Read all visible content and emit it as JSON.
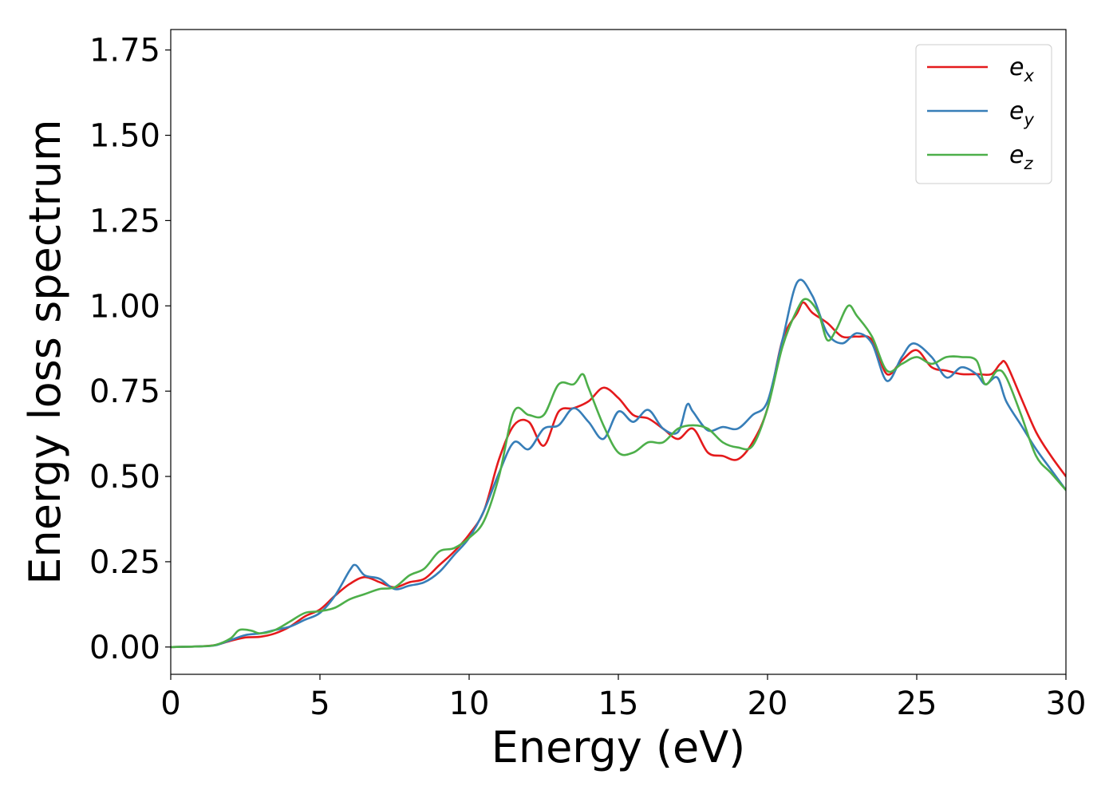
{
  "chart_data": {
    "type": "line",
    "title": "",
    "xlabel": "Energy (eV)",
    "ylabel": "Energy loss spectrum",
    "xlim": [
      0,
      30
    ],
    "ylim": [
      -0.08,
      1.81
    ],
    "xticks": [
      0,
      5,
      10,
      15,
      20,
      25,
      30
    ],
    "xtick_labels": [
      "0",
      "5",
      "10",
      "15",
      "20",
      "25",
      "30"
    ],
    "yticks": [
      0,
      0.25,
      0.5,
      0.75,
      1.0,
      1.25,
      1.5,
      1.75
    ],
    "ytick_labels": [
      "0.00",
      "0.25",
      "0.50",
      "0.75",
      "1.00",
      "1.25",
      "1.50",
      "1.75"
    ],
    "grid": false,
    "legend_position": "top-right",
    "series": [
      {
        "name": "e_x",
        "label_base": "e",
        "label_sub": "x",
        "color": "#e41a1c",
        "x": [
          0,
          1,
          1.5,
          2,
          2.5,
          3,
          3.5,
          4,
          4.5,
          5,
          5.5,
          6,
          6.5,
          7,
          7.5,
          8,
          8.5,
          9,
          9.5,
          10,
          10.5,
          11,
          11.5,
          12,
          12.5,
          13,
          13.5,
          14,
          14.5,
          15,
          15.5,
          16,
          16.5,
          17,
          17.5,
          18,
          18.5,
          19,
          19.5,
          20,
          20.5,
          21,
          21.2,
          21.5,
          22,
          22.5,
          23,
          23.5,
          24,
          24.5,
          25,
          25.5,
          26,
          26.5,
          27,
          27.5,
          27.8,
          28,
          28.5,
          29,
          29.5,
          30
        ],
        "y": [
          0,
          0.002,
          0.006,
          0.018,
          0.028,
          0.03,
          0.04,
          0.06,
          0.09,
          0.11,
          0.15,
          0.185,
          0.205,
          0.19,
          0.175,
          0.19,
          0.2,
          0.24,
          0.28,
          0.33,
          0.4,
          0.55,
          0.65,
          0.66,
          0.59,
          0.69,
          0.7,
          0.72,
          0.76,
          0.73,
          0.68,
          0.67,
          0.64,
          0.61,
          0.64,
          0.57,
          0.56,
          0.55,
          0.6,
          0.7,
          0.9,
          0.98,
          1.01,
          0.98,
          0.95,
          0.91,
          0.91,
          0.9,
          0.8,
          0.84,
          0.87,
          0.82,
          0.81,
          0.8,
          0.8,
          0.8,
          0.83,
          0.83,
          0.73,
          0.63,
          0.56,
          0.5
        ]
      },
      {
        "name": "e_y",
        "label_base": "e",
        "label_sub": "y",
        "color": "#377eb8",
        "x": [
          0,
          1,
          1.5,
          2,
          2.5,
          3,
          3.5,
          4,
          4.5,
          5,
          5.5,
          6,
          6.2,
          6.5,
          7,
          7.5,
          8,
          8.5,
          9,
          9.5,
          10,
          10.5,
          11,
          11.5,
          12,
          12.5,
          13,
          13.5,
          14,
          14.5,
          15,
          15.5,
          16,
          16.5,
          17,
          17.3,
          17.5,
          18,
          18.5,
          19,
          19.5,
          20,
          20.5,
          21,
          21.5,
          22,
          22.5,
          23,
          23.5,
          24,
          24.5,
          24.9,
          25.5,
          26,
          26.5,
          27,
          27.3,
          27.7,
          28,
          28.5,
          29,
          29.5,
          30
        ],
        "y": [
          0,
          0.002,
          0.005,
          0.02,
          0.035,
          0.04,
          0.05,
          0.06,
          0.08,
          0.1,
          0.15,
          0.225,
          0.24,
          0.21,
          0.2,
          0.17,
          0.18,
          0.19,
          0.22,
          0.27,
          0.32,
          0.4,
          0.51,
          0.6,
          0.58,
          0.64,
          0.65,
          0.7,
          0.66,
          0.61,
          0.69,
          0.66,
          0.695,
          0.64,
          0.63,
          0.71,
          0.69,
          0.635,
          0.645,
          0.64,
          0.68,
          0.72,
          0.9,
          1.07,
          1.03,
          0.92,
          0.89,
          0.92,
          0.89,
          0.78,
          0.85,
          0.89,
          0.85,
          0.79,
          0.82,
          0.8,
          0.77,
          0.79,
          0.72,
          0.65,
          0.58,
          0.52,
          0.46
        ]
      },
      {
        "name": "e_z",
        "label_base": "e",
        "label_sub": "z",
        "color": "#4daf4a",
        "x": [
          0,
          1,
          1.5,
          2,
          2.3,
          2.7,
          3,
          3.5,
          4,
          4.5,
          5,
          5.5,
          6,
          6.5,
          7,
          7.5,
          8,
          8.5,
          9,
          9.5,
          10,
          10.5,
          11,
          11.5,
          12,
          12.5,
          13,
          13.5,
          13.8,
          14,
          14.5,
          15,
          15.5,
          16,
          16.5,
          17,
          17.5,
          18,
          18.5,
          19,
          19.5,
          20,
          20.5,
          21,
          21.3,
          21.7,
          22,
          22.3,
          22.7,
          23,
          23.5,
          24,
          24.5,
          25,
          25.5,
          26,
          26.5,
          27,
          27.3,
          27.7,
          28,
          28.5,
          29,
          29.5,
          30
        ],
        "y": [
          0,
          0.002,
          0.006,
          0.025,
          0.05,
          0.048,
          0.04,
          0.05,
          0.075,
          0.1,
          0.105,
          0.115,
          0.14,
          0.155,
          0.17,
          0.175,
          0.21,
          0.23,
          0.28,
          0.29,
          0.32,
          0.37,
          0.5,
          0.69,
          0.68,
          0.68,
          0.77,
          0.77,
          0.8,
          0.76,
          0.65,
          0.57,
          0.57,
          0.6,
          0.6,
          0.64,
          0.65,
          0.64,
          0.6,
          0.585,
          0.59,
          0.7,
          0.88,
          0.99,
          1.02,
          0.98,
          0.9,
          0.93,
          1.0,
          0.97,
          0.91,
          0.81,
          0.83,
          0.85,
          0.83,
          0.85,
          0.85,
          0.84,
          0.77,
          0.81,
          0.79,
          0.68,
          0.56,
          0.51,
          0.46
        ]
      }
    ]
  }
}
